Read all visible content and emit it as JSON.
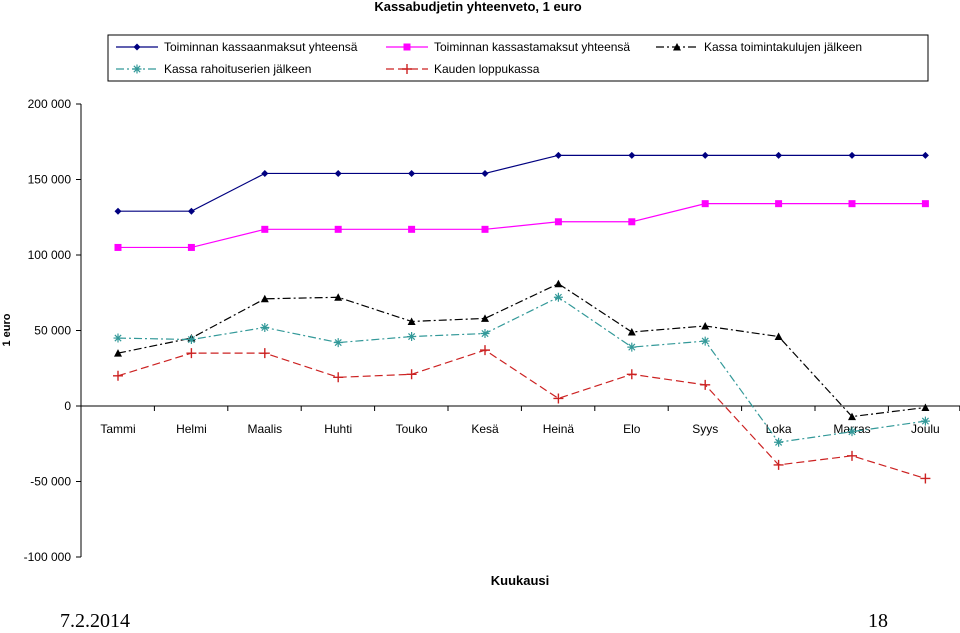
{
  "chart_data": {
    "type": "line",
    "title": "Kassabudjetin yhteenveto,  1 euro",
    "xlabel": "Kuukausi",
    "ylabel": "1 euro",
    "categories": [
      "Tammi",
      "Helmi",
      "Maalis",
      "Huhti",
      "Touko",
      "Kesä",
      "Heinä",
      "Elo",
      "Syys",
      "Loka",
      "Marras",
      "Joulu"
    ],
    "ylim": [
      -100000,
      200000
    ],
    "yticks": [
      200000,
      150000,
      100000,
      50000,
      0,
      -50000,
      -100000
    ],
    "ytick_labels": [
      "200 000",
      "150 000",
      "100 000",
      "50 000",
      "0",
      "-50 000",
      "-100 000"
    ],
    "legend_position": "top",
    "series": [
      {
        "name": "Toiminnan kassaanmaksut yhteensä",
        "color": "#000080",
        "marker": "diamond",
        "dash": "solid",
        "values": [
          129000,
          129000,
          154000,
          154000,
          154000,
          154000,
          166000,
          166000,
          166000,
          166000,
          166000,
          166000
        ]
      },
      {
        "name": "Toiminnan kassastamaksut yhteensä",
        "color": "#ff00ff",
        "marker": "square",
        "dash": "solid",
        "values": [
          105000,
          105000,
          117000,
          117000,
          117000,
          117000,
          122000,
          122000,
          134000,
          134000,
          134000,
          134000
        ]
      },
      {
        "name": "Kassa toimintakulujen jälkeen",
        "color": "#000000",
        "marker": "triangle",
        "dash": "dashdot",
        "values": [
          35000,
          45000,
          71000,
          72000,
          56000,
          58000,
          81000,
          49000,
          53000,
          46000,
          -7000,
          -1000
        ]
      },
      {
        "name": "Kassa rahoituserien jälkeen",
        "color": "#339999",
        "marker": "asterisk",
        "dash": "dashdot",
        "values": [
          45000,
          44000,
          52000,
          42000,
          46000,
          48000,
          72000,
          39000,
          43000,
          -24000,
          -17000,
          -10000
        ]
      },
      {
        "name": "Kauden loppukassa",
        "color": "#cc2222",
        "marker": "plus",
        "dash": "dash",
        "values": [
          20000,
          35000,
          35000,
          19000,
          21000,
          37000,
          5000,
          21000,
          14000,
          -39000,
          -33000,
          -48000
        ]
      }
    ]
  },
  "footer": {
    "date": "7.2.2014",
    "page": "18"
  }
}
